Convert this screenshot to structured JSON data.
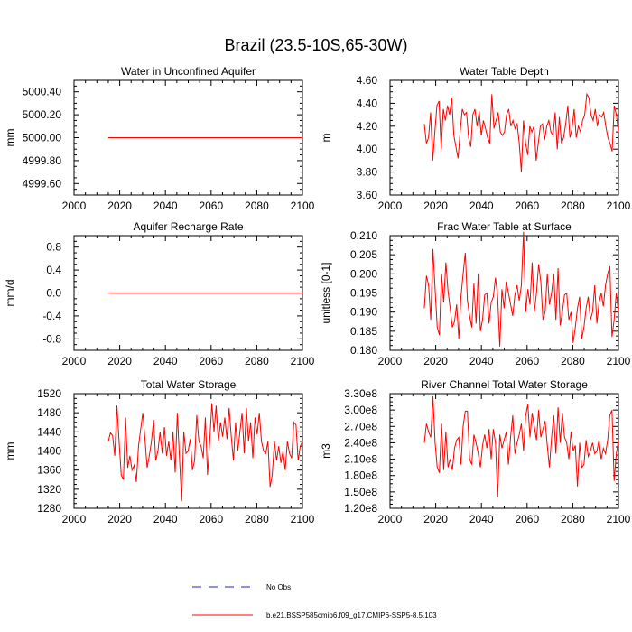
{
  "figure_title": "Brazil (23.5-10S,65-30W)",
  "colors": {
    "model": "#ff0000",
    "obs": "#2020c0",
    "axis": "#000000"
  },
  "legend": [
    {
      "label": "No Obs",
      "style": "dashed",
      "color": "#2020c0"
    },
    {
      "label": "b.e21.BSSP585cmip6.f09_g17.CMIP6-SSP5-8.5.103",
      "style": "solid",
      "color": "#ff0000"
    }
  ],
  "chart_data": [
    {
      "type": "line",
      "title": "Water in Unconfined Aquifer",
      "xlabel": "",
      "ylabel": "mm",
      "xlim": [
        2000,
        2100
      ],
      "ylim": [
        4999.5,
        5000.5
      ],
      "xticks": [
        2000,
        2020,
        2040,
        2060,
        2080,
        2100
      ],
      "yticks": [
        4999.6,
        4999.8,
        5000.0,
        5000.2,
        5000.4
      ],
      "ytick_labels": [
        "4999.60",
        "4999.80",
        "5000.00",
        "5000.20",
        "5000.40"
      ],
      "x_start": 2015,
      "x_end": 2100,
      "series": [
        {
          "name": "b.e21.BSSP585cmip6.f09_g17.CMIP6-SSP5-8.5.103",
          "values": [
            5000.0,
            5000.0
          ]
        }
      ]
    },
    {
      "type": "line",
      "title": "Water Table Depth",
      "xlabel": "",
      "ylabel": "m",
      "xlim": [
        2000,
        2100
      ],
      "ylim": [
        3.6,
        4.6
      ],
      "xticks": [
        2000,
        2020,
        2040,
        2060,
        2080,
        2100
      ],
      "yticks": [
        3.6,
        3.8,
        4.0,
        4.2,
        4.4,
        4.6
      ],
      "ytick_labels": [
        "3.60",
        "3.80",
        "4.00",
        "4.20",
        "4.40",
        "4.60"
      ],
      "x_start": 2015,
      "x_end": 2100,
      "series": [
        {
          "name": "b.e21.BSSP585cmip6.f09_g17.CMIP6-SSP5-8.5.103",
          "values": [
            4.22,
            4.05,
            4.1,
            4.32,
            3.9,
            4.15,
            4.38,
            4.42,
            4.0,
            4.35,
            4.25,
            4.38,
            4.3,
            4.45,
            4.12,
            4.02,
            3.92,
            4.15,
            4.35,
            4.3,
            4.32,
            4.1,
            4.02,
            4.3,
            4.35,
            4.2,
            4.33,
            4.12,
            4.25,
            4.18,
            4.1,
            4.05,
            4.48,
            4.18,
            4.25,
            4.32,
            4.15,
            4.12,
            4.15,
            4.3,
            4.35,
            4.2,
            4.25,
            4.18,
            4.22,
            4.05,
            3.8,
            4.25,
            4.05,
            3.95,
            4.2,
            4.15,
            4.2,
            3.9,
            4.05,
            4.2,
            4.22,
            4.08,
            4.2,
            4.25,
            4.15,
            4.12,
            4.32,
            4.0,
            4.28,
            4.05,
            4.1,
            4.22,
            4.38,
            4.1,
            4.18,
            4.35,
            4.1,
            4.2,
            4.15,
            4.25,
            4.3,
            4.48,
            4.45,
            4.3,
            4.25,
            4.35,
            4.2,
            4.3,
            4.28,
            4.32,
            4.2,
            4.1,
            4.05,
            3.98,
            4.38,
            4.3,
            4.15
          ]
        }
      ]
    },
    {
      "type": "line",
      "title": "Aquifer Recharge Rate",
      "xlabel": "",
      "ylabel": "mm/d",
      "xlim": [
        2000,
        2100
      ],
      "ylim": [
        -1,
        1
      ],
      "xticks": [
        2000,
        2020,
        2040,
        2060,
        2080,
        2100
      ],
      "yticks": [
        -0.8,
        -0.4,
        0,
        0.4,
        0.8
      ],
      "ytick_labels": [
        "-0.8",
        "-0.4",
        "0.0",
        "0.4",
        "0.8"
      ],
      "x_start": 2015,
      "x_end": 2100,
      "series": [
        {
          "name": "b.e21.BSSP585cmip6.f09_g17.CMIP6-SSP5-8.5.103",
          "values": [
            0.0,
            0.0
          ]
        }
      ]
    },
    {
      "type": "line",
      "title": "Frac Water Table at Surface",
      "xlabel": "",
      "ylabel": "unitless [0-1]",
      "xlim": [
        2000,
        2100
      ],
      "ylim": [
        0.18,
        0.21
      ],
      "xticks": [
        2000,
        2020,
        2040,
        2060,
        2080,
        2100
      ],
      "yticks": [
        0.18,
        0.185,
        0.19,
        0.195,
        0.2,
        0.205,
        0.21
      ],
      "ytick_labels": [
        "0.180",
        "0.185",
        "0.190",
        "0.195",
        "0.200",
        "0.205",
        "0.210"
      ],
      "x_start": 2015,
      "x_end": 2100,
      "series": [
        {
          "name": "b.e21.BSSP585cmip6.f09_g17.CMIP6-SSP5-8.5.103",
          "values": [
            0.191,
            0.1995,
            0.197,
            0.188,
            0.2065,
            0.196,
            0.186,
            0.184,
            0.2,
            0.1925,
            0.203,
            0.1955,
            0.191,
            0.186,
            0.1875,
            0.192,
            0.183,
            0.194,
            0.2,
            0.2055,
            0.193,
            0.189,
            0.186,
            0.1975,
            0.187,
            0.2,
            0.185,
            0.188,
            0.1945,
            0.195,
            0.187,
            0.1925,
            0.194,
            0.199,
            0.194,
            0.181,
            0.196,
            0.191,
            0.198,
            0.195,
            0.192,
            0.189,
            0.1945,
            0.197,
            0.193,
            0.197,
            0.211,
            0.19,
            0.196,
            0.192,
            0.203,
            0.19,
            0.195,
            0.2025,
            0.198,
            0.188,
            0.19,
            0.2,
            0.192,
            0.195,
            0.2,
            0.188,
            0.2015,
            0.1865,
            0.19,
            0.1945,
            0.195,
            0.188,
            0.19,
            0.182,
            0.186,
            0.191,
            0.194,
            0.183,
            0.186,
            0.191,
            0.194,
            0.188,
            0.19,
            0.197,
            0.187,
            0.1925,
            0.195,
            0.1915,
            0.197,
            0.2,
            0.202,
            0.1835,
            0.188,
            0.195,
            0.19
          ]
        }
      ]
    },
    {
      "type": "line",
      "title": "Total Water Storage",
      "xlabel": "",
      "ylabel": "mm",
      "xlim": [
        2000,
        2100
      ],
      "ylim": [
        1280,
        1520
      ],
      "xticks": [
        2000,
        2020,
        2040,
        2060,
        2080,
        2100
      ],
      "yticks": [
        1280,
        1320,
        1360,
        1400,
        1440,
        1480,
        1520
      ],
      "ytick_labels": [
        "1280",
        "1320",
        "1360",
        "1400",
        "1440",
        "1480",
        "1520"
      ],
      "x_start": 2015,
      "x_end": 2100,
      "series": [
        {
          "name": "b.e21.BSSP585cmip6.f09_g17.CMIP6-SSP5-8.5.103",
          "values": [
            1420,
            1438,
            1432,
            1390,
            1495,
            1420,
            1350,
            1340,
            1470,
            1365,
            1390,
            1360,
            1370,
            1335,
            1410,
            1445,
            1480,
            1425,
            1365,
            1390,
            1420,
            1465,
            1380,
            1400,
            1440,
            1395,
            1450,
            1390,
            1420,
            1380,
            1440,
            1355,
            1480,
            1385,
            1295,
            1440,
            1395,
            1400,
            1425,
            1360,
            1380,
            1475,
            1420,
            1410,
            1385,
            1470,
            1350,
            1420,
            1500,
            1440,
            1495,
            1420,
            1460,
            1430,
            1470,
            1425,
            1490,
            1430,
            1380,
            1460,
            1400,
            1440,
            1480,
            1395,
            1490,
            1420,
            1460,
            1385,
            1470,
            1435,
            1480,
            1420,
            1400,
            1395,
            1420,
            1325,
            1350,
            1420,
            1380,
            1410,
            1375,
            1400,
            1360,
            1420,
            1395,
            1385,
            1460,
            1455,
            1380,
            1410,
            1420
          ]
        }
      ]
    },
    {
      "type": "line",
      "title": "River Channel Total Water Storage",
      "xlabel": "",
      "ylabel": "m3",
      "xlim": [
        2000,
        2100
      ],
      "ylim": [
        120000000.0,
        330000000.0
      ],
      "xticks": [
        2000,
        2020,
        2040,
        2060,
        2080,
        2100
      ],
      "yticks": [
        120000000.0,
        150000000.0,
        180000000.0,
        210000000.0,
        240000000.0,
        270000000.0,
        300000000.0,
        330000000.0
      ],
      "ytick_labels": [
        "1.20e8",
        "1.50e8",
        "1.80e8",
        "2.10e8",
        "2.40e8",
        "2.70e8",
        "3.00e8",
        "3.30e8"
      ],
      "x_start": 2015,
      "x_end": 2100,
      "series": [
        {
          "name": "b.e21.BSSP585cmip6.f09_g17.CMIP6-SSP5-8.5.103",
          "values": [
            240000000.0,
            275000000.0,
            260000000.0,
            250000000.0,
            325000000.0,
            240000000.0,
            195000000.0,
            185000000.0,
            275000000.0,
            190000000.0,
            260000000.0,
            195000000.0,
            210000000.0,
            190000000.0,
            230000000.0,
            245000000.0,
            250000000.0,
            200000000.0,
            270000000.0,
            298000000.0,
            298000000.0,
            210000000.0,
            200000000.0,
            255000000.0,
            240000000.0,
            220000000.0,
            195000000.0,
            235000000.0,
            255000000.0,
            230000000.0,
            265000000.0,
            210000000.0,
            265000000.0,
            240000000.0,
            140000000.0,
            255000000.0,
            230000000.0,
            245000000.0,
            260000000.0,
            200000000.0,
            250000000.0,
            290000000.0,
            220000000.0,
            240000000.0,
            255000000.0,
            275000000.0,
            225000000.0,
            290000000.0,
            310000000.0,
            250000000.0,
            295000000.0,
            270000000.0,
            245000000.0,
            300000000.0,
            250000000.0,
            265000000.0,
            280000000.0,
            235000000.0,
            195000000.0,
            250000000.0,
            290000000.0,
            220000000.0,
            305000000.0,
            240000000.0,
            295000000.0,
            250000000.0,
            240000000.0,
            210000000.0,
            260000000.0,
            225000000.0,
            235000000.0,
            160000000.0,
            240000000.0,
            195000000.0,
            200000000.0,
            245000000.0,
            215000000.0,
            225000000.0,
            240000000.0,
            220000000.0,
            225000000.0,
            245000000.0,
            210000000.0,
            230000000.0,
            220000000.0,
            245000000.0,
            290000000.0,
            300000000.0,
            170000000.0,
            220000000.0,
            245000000.0
          ]
        }
      ]
    }
  ]
}
